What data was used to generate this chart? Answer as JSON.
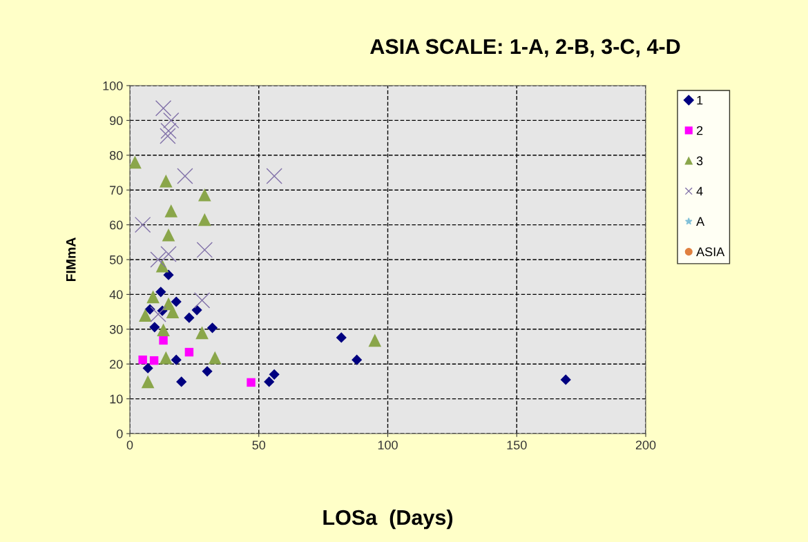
{
  "chart_data": {
    "type": "scatter",
    "title": "ASIA SCALE: 1-A, 2-B, 3-C, 4-D",
    "xlabel": "LOSa  (Days)",
    "ylabel": "FIMmA",
    "xlim": [
      0,
      200
    ],
    "xticks": [
      0,
      50,
      100,
      150,
      200
    ],
    "ylim": [
      0,
      100
    ],
    "yticks": [
      0,
      10,
      20,
      30,
      40,
      50,
      60,
      70,
      80,
      90,
      100
    ],
    "grid": true,
    "legend": "right",
    "series": [
      {
        "name": "1",
        "color": "#000080",
        "marker": "diamond",
        "x": [
          15,
          12,
          18,
          26,
          23,
          12.6,
          7.8,
          9.6,
          32,
          18,
          7,
          30,
          20,
          56,
          54,
          82,
          88,
          169
        ],
        "values": [
          45.6,
          40.7,
          37.9,
          35.5,
          33.3,
          35.3,
          35.7,
          30.6,
          30.4,
          21.2,
          18.8,
          17.9,
          14.9,
          17,
          14.9,
          27.6,
          21.2,
          15.5
        ]
      },
      {
        "name": "2",
        "color": "#ff00ff",
        "marker": "square",
        "x": [
          13,
          23,
          5,
          9.4,
          47
        ],
        "values": [
          26.8,
          23.4,
          21.2,
          21,
          14.7
        ]
      },
      {
        "name": "3",
        "color": "#8aa64a",
        "marker": "triangle",
        "x": [
          2,
          14,
          29,
          16,
          29,
          15,
          12.6,
          9,
          15,
          6,
          16.6,
          13,
          28,
          14,
          33,
          7,
          95
        ],
        "values": [
          78,
          72.6,
          68.6,
          64,
          61.5,
          57.1,
          48.2,
          39.3,
          37.3,
          34,
          35,
          29.8,
          29,
          21.8,
          21.8,
          14.9,
          26.8
        ]
      },
      {
        "name": "4",
        "color": "#8070a8",
        "marker": "cross",
        "x": [
          13,
          16,
          15,
          14.7,
          21.4,
          56,
          5,
          29,
          15,
          11,
          28,
          11
        ],
        "values": [
          93.5,
          90,
          87,
          85.5,
          74,
          74,
          60,
          52.8,
          51.6,
          50,
          38.3,
          34.3
        ]
      },
      {
        "name": "A",
        "color": "#80c0d8",
        "marker": "star"
      },
      {
        "name": "ASIA",
        "color": "#e08040",
        "marker": "circle"
      }
    ]
  }
}
